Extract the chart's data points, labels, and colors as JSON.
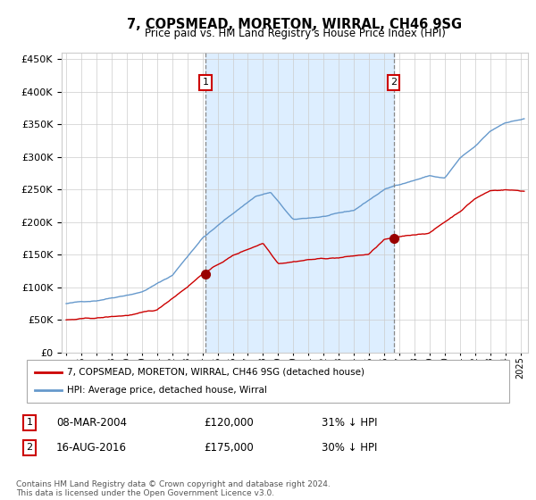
{
  "title": "7, COPSMEAD, MORETON, WIRRAL, CH46 9SG",
  "subtitle": "Price paid vs. HM Land Registry's House Price Index (HPI)",
  "legend1": "7, COPSMEAD, MORETON, WIRRAL, CH46 9SG (detached house)",
  "legend2": "HPI: Average price, detached house, Wirral",
  "annotation1_date": "08-MAR-2004",
  "annotation1_price": "£120,000",
  "annotation1_hpi": "31% ↓ HPI",
  "annotation2_date": "16-AUG-2016",
  "annotation2_price": "£175,000",
  "annotation2_hpi": "30% ↓ HPI",
  "footer": "Contains HM Land Registry data © Crown copyright and database right 2024.\nThis data is licensed under the Open Government Licence v3.0.",
  "sale1_year": 2004.19,
  "sale1_value": 120000,
  "sale2_year": 2016.62,
  "sale2_value": 175000,
  "vline1_year": 2004.19,
  "vline2_year": 2016.62,
  "ylim_max": 460000,
  "ylim_min": 0,
  "red_color": "#cc0000",
  "blue_color": "#6699cc",
  "bg_shade_color": "#ddeeff",
  "grid_color": "#cccccc",
  "vline_color": "#888888"
}
